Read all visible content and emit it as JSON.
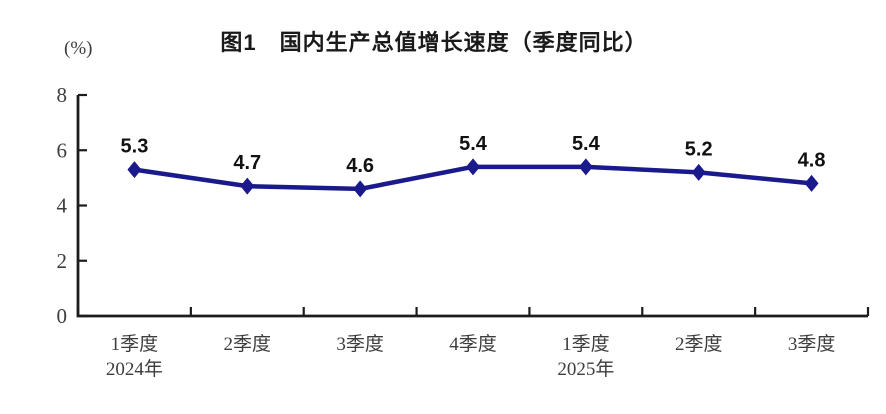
{
  "chart_data": {
    "type": "line",
    "title": "图1　国内生产总值增长速度（季度同比）",
    "unit_label": "(%)",
    "categories": [
      "1季度",
      "2季度",
      "3季度",
      "4季度",
      "1季度",
      "2季度",
      "3季度"
    ],
    "category_year_labels": [
      "2024年",
      "",
      "",
      "",
      "2025年",
      "",
      ""
    ],
    "values": [
      5.3,
      4.7,
      4.6,
      5.4,
      5.4,
      5.2,
      4.8
    ],
    "data_labels": [
      "5.3",
      "4.7",
      "4.6",
      "5.4",
      "5.4",
      "5.2",
      "4.8"
    ],
    "xlabel": "",
    "ylabel": "(%)",
    "ylim": [
      0,
      8
    ],
    "yticks": [
      0,
      2,
      4,
      6,
      8
    ],
    "grid": false,
    "legend_position": "none",
    "line_color": "#1a1a8c",
    "marker": "diamond",
    "marker_color": "#1a1a8c",
    "axis_color": "#1c1c1c",
    "tick_label_color": "#3d3d3d",
    "data_label_color": "#111111"
  }
}
